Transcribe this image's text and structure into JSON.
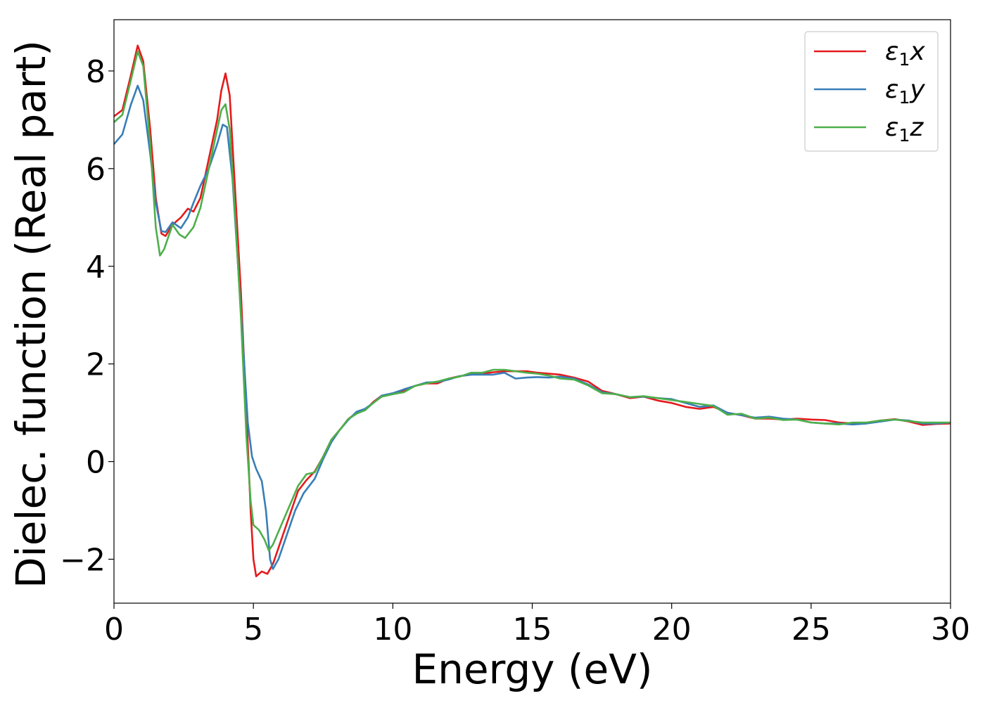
{
  "chart_data": {
    "type": "line",
    "title": "",
    "xlabel": "Energy (eV)",
    "ylabel": "Dielec. function (Real part)",
    "xlim": [
      0,
      30
    ],
    "ylim": [
      -2.9,
      9.05
    ],
    "xticks": [
      0,
      5,
      10,
      15,
      20,
      25,
      30
    ],
    "yticks": [
      -2,
      0,
      2,
      4,
      6,
      8
    ],
    "xtick_labels": [
      "0",
      "5",
      "10",
      "15",
      "20",
      "25",
      "30"
    ],
    "ytick_labels": [
      "−2",
      "0",
      "2",
      "4",
      "6",
      "8"
    ],
    "grid": false,
    "legend": {
      "position": "top-right",
      "entries": [
        {
          "main": "ε",
          "sub": "1",
          "suffix": "x"
        },
        {
          "main": "ε",
          "sub": "1",
          "suffix": "y"
        },
        {
          "main": "ε",
          "sub": "1",
          "suffix": "z"
        }
      ]
    },
    "series": [
      {
        "color": "#e41a1c",
        "points": [
          [
            0,
            7.07
          ],
          [
            0.3,
            7.2
          ],
          [
            0.6,
            7.9
          ],
          [
            0.85,
            8.52
          ],
          [
            1.05,
            8.2
          ],
          [
            1.3,
            6.8
          ],
          [
            1.5,
            5.4
          ],
          [
            1.7,
            4.67
          ],
          [
            1.85,
            4.62
          ],
          [
            2.1,
            4.85
          ],
          [
            2.4,
            5.0
          ],
          [
            2.65,
            5.18
          ],
          [
            2.85,
            5.12
          ],
          [
            3.1,
            5.4
          ],
          [
            3.4,
            6.2
          ],
          [
            3.7,
            7.0
          ],
          [
            3.85,
            7.6
          ],
          [
            4.0,
            7.95
          ],
          [
            4.15,
            7.5
          ],
          [
            4.35,
            5.5
          ],
          [
            4.55,
            3.5
          ],
          [
            4.75,
            1.0
          ],
          [
            4.9,
            -1.0
          ],
          [
            5.0,
            -2.0
          ],
          [
            5.1,
            -2.35
          ],
          [
            5.3,
            -2.25
          ],
          [
            5.5,
            -2.3
          ],
          [
            5.7,
            -2.1
          ],
          [
            6.0,
            -1.6
          ],
          [
            6.3,
            -1.1
          ],
          [
            6.6,
            -0.6
          ],
          [
            6.9,
            -0.38
          ],
          [
            7.2,
            -0.2
          ],
          [
            7.5,
            0.1
          ],
          [
            7.8,
            0.45
          ],
          [
            8.1,
            0.65
          ],
          [
            8.4,
            0.87
          ],
          [
            8.7,
            1.0
          ],
          [
            9.0,
            1.05
          ],
          [
            9.3,
            1.22
          ],
          [
            9.6,
            1.35
          ],
          [
            10.0,
            1.38
          ],
          [
            10.4,
            1.45
          ],
          [
            10.8,
            1.55
          ],
          [
            11.2,
            1.6
          ],
          [
            11.6,
            1.6
          ],
          [
            12.0,
            1.7
          ],
          [
            12.4,
            1.75
          ],
          [
            12.8,
            1.78
          ],
          [
            13.2,
            1.8
          ],
          [
            13.6,
            1.83
          ],
          [
            14.0,
            1.85
          ],
          [
            14.4,
            1.85
          ],
          [
            14.8,
            1.85
          ],
          [
            15.2,
            1.82
          ],
          [
            15.6,
            1.8
          ],
          [
            16.0,
            1.78
          ],
          [
            16.5,
            1.72
          ],
          [
            17.0,
            1.64
          ],
          [
            17.5,
            1.45
          ],
          [
            18.0,
            1.38
          ],
          [
            18.5,
            1.3
          ],
          [
            19.0,
            1.33
          ],
          [
            19.5,
            1.25
          ],
          [
            20.0,
            1.2
          ],
          [
            20.5,
            1.12
          ],
          [
            21.0,
            1.08
          ],
          [
            21.5,
            1.12
          ],
          [
            22.0,
            1.0
          ],
          [
            22.5,
            0.95
          ],
          [
            23.0,
            0.88
          ],
          [
            23.5,
            0.88
          ],
          [
            24.0,
            0.86
          ],
          [
            24.5,
            0.88
          ],
          [
            25.0,
            0.86
          ],
          [
            25.5,
            0.85
          ],
          [
            26.0,
            0.8
          ],
          [
            26.5,
            0.78
          ],
          [
            27.0,
            0.8
          ],
          [
            27.5,
            0.84
          ],
          [
            28.0,
            0.87
          ],
          [
            28.5,
            0.82
          ],
          [
            29.0,
            0.75
          ],
          [
            29.5,
            0.77
          ],
          [
            30.0,
            0.78
          ]
        ]
      },
      {
        "color": "#377eb8",
        "points": [
          [
            0,
            6.5
          ],
          [
            0.3,
            6.7
          ],
          [
            0.6,
            7.3
          ],
          [
            0.85,
            7.7
          ],
          [
            1.05,
            7.4
          ],
          [
            1.3,
            6.3
          ],
          [
            1.5,
            5.3
          ],
          [
            1.7,
            4.72
          ],
          [
            1.85,
            4.7
          ],
          [
            2.1,
            4.9
          ],
          [
            2.4,
            4.78
          ],
          [
            2.65,
            5.0
          ],
          [
            2.85,
            5.3
          ],
          [
            3.1,
            5.65
          ],
          [
            3.4,
            6.0
          ],
          [
            3.7,
            6.5
          ],
          [
            3.9,
            6.9
          ],
          [
            4.05,
            6.85
          ],
          [
            4.25,
            5.8
          ],
          [
            4.45,
            4.0
          ],
          [
            4.65,
            2.2
          ],
          [
            4.8,
            0.8
          ],
          [
            4.95,
            0.1
          ],
          [
            5.1,
            -0.15
          ],
          [
            5.3,
            -0.4
          ],
          [
            5.45,
            -1.0
          ],
          [
            5.6,
            -2.0
          ],
          [
            5.7,
            -2.2
          ],
          [
            5.9,
            -2.0
          ],
          [
            6.2,
            -1.5
          ],
          [
            6.5,
            -1.0
          ],
          [
            6.8,
            -0.65
          ],
          [
            7.2,
            -0.35
          ],
          [
            7.5,
            0.05
          ],
          [
            7.8,
            0.4
          ],
          [
            8.1,
            0.65
          ],
          [
            8.4,
            0.85
          ],
          [
            8.7,
            1.02
          ],
          [
            9.0,
            1.08
          ],
          [
            9.3,
            1.2
          ],
          [
            9.6,
            1.35
          ],
          [
            10.0,
            1.4
          ],
          [
            10.4,
            1.48
          ],
          [
            10.8,
            1.55
          ],
          [
            11.2,
            1.62
          ],
          [
            11.6,
            1.63
          ],
          [
            12.0,
            1.68
          ],
          [
            12.4,
            1.75
          ],
          [
            12.8,
            1.78
          ],
          [
            13.2,
            1.78
          ],
          [
            13.6,
            1.78
          ],
          [
            14.0,
            1.82
          ],
          [
            14.4,
            1.7
          ],
          [
            14.8,
            1.72
          ],
          [
            15.2,
            1.73
          ],
          [
            15.6,
            1.72
          ],
          [
            16.0,
            1.74
          ],
          [
            16.5,
            1.7
          ],
          [
            17.0,
            1.58
          ],
          [
            17.5,
            1.42
          ],
          [
            18.0,
            1.38
          ],
          [
            18.5,
            1.32
          ],
          [
            19.0,
            1.33
          ],
          [
            19.5,
            1.3
          ],
          [
            20.0,
            1.28
          ],
          [
            20.5,
            1.2
          ],
          [
            21.0,
            1.12
          ],
          [
            21.5,
            1.15
          ],
          [
            22.0,
            1.0
          ],
          [
            22.5,
            0.95
          ],
          [
            23.0,
            0.9
          ],
          [
            23.5,
            0.92
          ],
          [
            24.0,
            0.88
          ],
          [
            24.5,
            0.86
          ],
          [
            25.0,
            0.8
          ],
          [
            25.5,
            0.78
          ],
          [
            26.0,
            0.78
          ],
          [
            26.5,
            0.76
          ],
          [
            27.0,
            0.78
          ],
          [
            27.5,
            0.82
          ],
          [
            28.0,
            0.86
          ],
          [
            28.5,
            0.84
          ],
          [
            29.0,
            0.78
          ],
          [
            29.5,
            0.78
          ],
          [
            30.0,
            0.8
          ]
        ]
      },
      {
        "color": "#4daf4a",
        "points": [
          [
            0,
            6.95
          ],
          [
            0.3,
            7.1
          ],
          [
            0.6,
            7.8
          ],
          [
            0.85,
            8.4
          ],
          [
            1.05,
            8.1
          ],
          [
            1.3,
            6.5
          ],
          [
            1.5,
            4.8
          ],
          [
            1.65,
            4.22
          ],
          [
            1.8,
            4.35
          ],
          [
            2.1,
            4.85
          ],
          [
            2.35,
            4.65
          ],
          [
            2.55,
            4.58
          ],
          [
            2.85,
            4.8
          ],
          [
            3.1,
            5.2
          ],
          [
            3.4,
            6.0
          ],
          [
            3.7,
            6.8
          ],
          [
            3.85,
            7.2
          ],
          [
            4.0,
            7.32
          ],
          [
            4.15,
            6.8
          ],
          [
            4.35,
            5.0
          ],
          [
            4.55,
            3.0
          ],
          [
            4.75,
            0.5
          ],
          [
            4.9,
            -0.8
          ],
          [
            5.0,
            -1.3
          ],
          [
            5.2,
            -1.4
          ],
          [
            5.4,
            -1.6
          ],
          [
            5.55,
            -1.82
          ],
          [
            5.7,
            -1.7
          ],
          [
            6.0,
            -1.3
          ],
          [
            6.3,
            -0.9
          ],
          [
            6.6,
            -0.5
          ],
          [
            6.9,
            -0.26
          ],
          [
            7.2,
            -0.22
          ],
          [
            7.5,
            0.1
          ],
          [
            7.8,
            0.45
          ],
          [
            8.1,
            0.65
          ],
          [
            8.4,
            0.87
          ],
          [
            8.7,
            0.98
          ],
          [
            9.0,
            1.05
          ],
          [
            9.3,
            1.2
          ],
          [
            9.6,
            1.33
          ],
          [
            10.0,
            1.38
          ],
          [
            10.4,
            1.42
          ],
          [
            10.8,
            1.55
          ],
          [
            11.2,
            1.6
          ],
          [
            11.6,
            1.64
          ],
          [
            12.0,
            1.7
          ],
          [
            12.4,
            1.74
          ],
          [
            12.8,
            1.82
          ],
          [
            13.2,
            1.82
          ],
          [
            13.6,
            1.88
          ],
          [
            14.0,
            1.88
          ],
          [
            14.4,
            1.85
          ],
          [
            14.8,
            1.82
          ],
          [
            15.2,
            1.8
          ],
          [
            15.6,
            1.76
          ],
          [
            16.0,
            1.7
          ],
          [
            16.5,
            1.68
          ],
          [
            17.0,
            1.56
          ],
          [
            17.5,
            1.4
          ],
          [
            18.0,
            1.38
          ],
          [
            18.5,
            1.32
          ],
          [
            19.0,
            1.34
          ],
          [
            19.5,
            1.3
          ],
          [
            20.0,
            1.26
          ],
          [
            20.5,
            1.22
          ],
          [
            21.0,
            1.18
          ],
          [
            21.5,
            1.14
          ],
          [
            22.0,
            0.96
          ],
          [
            22.5,
            0.98
          ],
          [
            23.0,
            0.88
          ],
          [
            23.5,
            0.9
          ],
          [
            24.0,
            0.85
          ],
          [
            24.5,
            0.86
          ],
          [
            25.0,
            0.8
          ],
          [
            25.5,
            0.78
          ],
          [
            26.0,
            0.76
          ],
          [
            26.5,
            0.8
          ],
          [
            27.0,
            0.8
          ],
          [
            27.5,
            0.84
          ],
          [
            28.0,
            0.86
          ],
          [
            28.5,
            0.83
          ],
          [
            29.0,
            0.8
          ],
          [
            29.5,
            0.8
          ],
          [
            30.0,
            0.8
          ]
        ]
      }
    ]
  }
}
